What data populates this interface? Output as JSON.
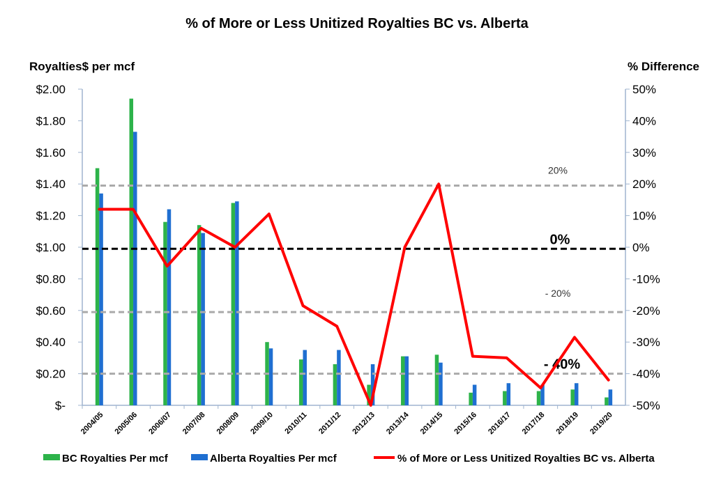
{
  "chart_data": {
    "type": "bar",
    "title": "% of More or Less Unitized Royalties BC vs. Alberta",
    "ylabel_left": "Royalties$ per mcf",
    "ylabel_right": "% Difference",
    "categories": [
      "2004/05",
      "2005/06",
      "2006/07",
      "2007/08",
      "2008/09",
      "2009/10",
      "2010/11",
      "2011/12",
      "2012/13",
      "2013/14",
      "2014/15",
      "2015/16",
      "2016/17",
      "2017/18",
      "2018/19",
      "2019/20"
    ],
    "series": [
      {
        "name": "BC Royalties Per mcf",
        "type": "bar",
        "axis": "left",
        "color": "#2db34a",
        "values": [
          1.5,
          1.94,
          1.16,
          1.14,
          1.28,
          0.4,
          0.29,
          0.26,
          0.13,
          0.31,
          0.32,
          0.08,
          0.09,
          0.09,
          0.1,
          0.05
        ]
      },
      {
        "name": "Alberta Royalties Per mcf",
        "type": "bar",
        "axis": "left",
        "color": "#1f6fd1",
        "values": [
          1.34,
          1.73,
          1.24,
          1.09,
          1.29,
          0.36,
          0.35,
          0.35,
          0.26,
          0.31,
          0.27,
          0.13,
          0.14,
          0.13,
          0.14,
          0.1
        ]
      },
      {
        "name": "% of More or Less Unitized Royalties BC vs. Alberta",
        "type": "line",
        "axis": "right",
        "color": "#ff0000",
        "values": [
          12,
          12,
          -6,
          6,
          0,
          10.5,
          -18.5,
          -25,
          -50,
          0,
          20,
          -34.5,
          -35,
          -44.5,
          -28.5,
          -42
        ]
      }
    ],
    "left_axis": {
      "min": 0,
      "max": 2.0,
      "ticks": [
        "$-",
        "$0.20",
        "$0.40",
        "$0.60",
        "$0.80",
        "$1.00",
        "$1.20",
        "$1.40",
        "$1.60",
        "$1.80",
        "$2.00"
      ]
    },
    "right_axis": {
      "min": -50,
      "max": 50,
      "ticks": [
        "-50%",
        "-40%",
        "-30%",
        "-20%",
        "-10%",
        "0%",
        "10%",
        "20%",
        "30%",
        "40%",
        "50%"
      ]
    },
    "reference_lines": [
      {
        "value_left": 1.39,
        "style": "dashed",
        "color": "#aaaaaa",
        "label": "20%",
        "label_style": "small"
      },
      {
        "value_left": 0.99,
        "style": "dashed",
        "color": "#000000",
        "label": "0%",
        "label_style": "big"
      },
      {
        "value_left": 0.59,
        "style": "dashed",
        "color": "#aaaaaa",
        "label": "- 20%",
        "label_style": "small"
      },
      {
        "value_left": 0.2,
        "style": "dashed",
        "color": "#aaaaaa",
        "label": "- 40%",
        "label_style": "big"
      }
    ],
    "legend_position": "bottom",
    "grid": false
  }
}
